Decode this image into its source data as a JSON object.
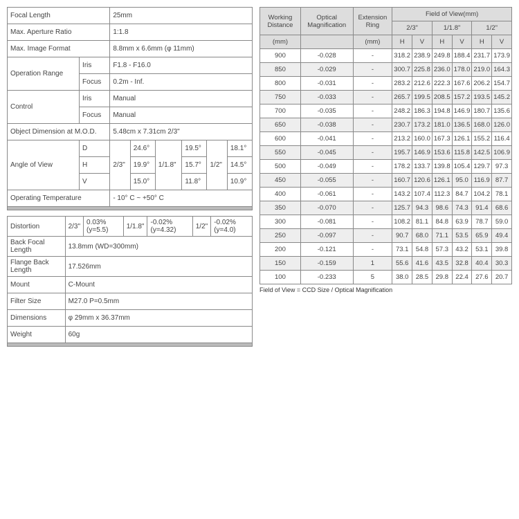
{
  "spec": {
    "focal_length": {
      "label": "Focal Length",
      "value": "25mm"
    },
    "max_aperture": {
      "label": "Max. Aperture Ratio",
      "value": "1:1.8"
    },
    "max_image_format": {
      "label": "Max. Image Format",
      "value": "8.8mm x 6.6mm (φ 11mm)"
    },
    "op_range": {
      "label": "Operation Range",
      "iris_l": "Iris",
      "iris_v": "F1.8 - F16.0",
      "focus_l": "Focus",
      "focus_v": "0.2m - Inf."
    },
    "control": {
      "label": "Control",
      "iris_l": "Iris",
      "iris_v": "Manual",
      "focus_l": "Focus",
      "focus_v": "Manual"
    },
    "obj_dim": {
      "label": "Object Dimension at M.O.D.",
      "value": "5.48cm x 7.31cm 2/3\""
    },
    "aov": {
      "label": "Angle of View",
      "d": "D",
      "h": "H",
      "v": "V",
      "s1": "2/3\"",
      "s2": "1/1.8\"",
      "s3": "1/2\"",
      "d1": "24.6°",
      "d2": "19.5°",
      "d3": "18.1°",
      "h1": "19.9°",
      "h2": "15.7°",
      "h3": "14.5°",
      "v1": "15.0°",
      "v2": "11.8°",
      "v3": "10.9°"
    },
    "op_temp": {
      "label": "Operating Temperature",
      "value": "- 10° C ~ +50° C"
    }
  },
  "spec2": {
    "distortion": {
      "label": "Distortion",
      "s1": "2/3\"",
      "v1": "0.03%(y=5.5)",
      "s2": "1/1.8\"",
      "v2": "-0.02%(y=4.32)",
      "s3": "1/2\"",
      "v3": "-0.02%(y=4.0)"
    },
    "back_focal": {
      "label": "Back Focal Length",
      "value": "13.8mm (WD=300mm)"
    },
    "flange_back": {
      "label": "Flange Back Length",
      "value": "17.526mm"
    },
    "mount": {
      "label": "Mount",
      "value": "C-Mount"
    },
    "filter": {
      "label": "Filter Size",
      "value": "M27.0 P=0.5mm"
    },
    "dimensions": {
      "label": "Dimensions",
      "value": "φ 29mm x 36.37mm"
    },
    "weight": {
      "label": "Weight",
      "value": "60g"
    }
  },
  "fov": {
    "headers": {
      "wd": "Working Distance",
      "mag": "Optical Magnification",
      "ext": "Extension Ring",
      "fov": "Field of View(mm)",
      "s1": "2/3\"",
      "s2": "1/1.8\"",
      "s3": "1/2\"",
      "mm": "(mm)",
      "mm2": "(mm)",
      "H": "H",
      "V": "V"
    },
    "rows": [
      {
        "wd": "900",
        "mag": "-0.028",
        "ext": "-",
        "h1": "318.2",
        "v1": "238.9",
        "h2": "249.8",
        "v2": "188.4",
        "h3": "231.7",
        "v3": "173.9"
      },
      {
        "wd": "850",
        "mag": "-0.029",
        "ext": "-",
        "h1": "300.7",
        "v1": "225.8",
        "h2": "236.0",
        "v2": "178.0",
        "h3": "219.0",
        "v3": "164.3"
      },
      {
        "wd": "800",
        "mag": "-0.031",
        "ext": "-",
        "h1": "283.2",
        "v1": "212.6",
        "h2": "222.3",
        "v2": "167.6",
        "h3": "206.2",
        "v3": "154.7"
      },
      {
        "wd": "750",
        "mag": "-0.033",
        "ext": "-",
        "h1": "265.7",
        "v1": "199.5",
        "h2": "208.5",
        "v2": "157.2",
        "h3": "193.5",
        "v3": "145.2"
      },
      {
        "wd": "700",
        "mag": "-0.035",
        "ext": "-",
        "h1": "248.2",
        "v1": "186.3",
        "h2": "194.8",
        "v2": "146.9",
        "h3": "180.7",
        "v3": "135.6"
      },
      {
        "wd": "650",
        "mag": "-0.038",
        "ext": "-",
        "h1": "230.7",
        "v1": "173.2",
        "h2": "181.0",
        "v2": "136.5",
        "h3": "168.0",
        "v3": "126.0"
      },
      {
        "wd": "600",
        "mag": "-0.041",
        "ext": "-",
        "h1": "213.2",
        "v1": "160.0",
        "h2": "167.3",
        "v2": "126.1",
        "h3": "155.2",
        "v3": "116.4"
      },
      {
        "wd": "550",
        "mag": "-0.045",
        "ext": "-",
        "h1": "195.7",
        "v1": "146.9",
        "h2": "153.6",
        "v2": "115.8",
        "h3": "142.5",
        "v3": "106.9"
      },
      {
        "wd": "500",
        "mag": "-0.049",
        "ext": "-",
        "h1": "178.2",
        "v1": "133.7",
        "h2": "139.8",
        "v2": "105.4",
        "h3": "129.7",
        "v3": "97.3"
      },
      {
        "wd": "450",
        "mag": "-0.055",
        "ext": "-",
        "h1": "160.7",
        "v1": "120.6",
        "h2": "126.1",
        "v2": "95.0",
        "h3": "116.9",
        "v3": "87.7"
      },
      {
        "wd": "400",
        "mag": "-0.061",
        "ext": "-",
        "h1": "143.2",
        "v1": "107.4",
        "h2": "112.3",
        "v2": "84.7",
        "h3": "104.2",
        "v3": "78.1"
      },
      {
        "wd": "350",
        "mag": "-0.070",
        "ext": "-",
        "h1": "125.7",
        "v1": "94.3",
        "h2": "98.6",
        "v2": "74.3",
        "h3": "91.4",
        "v3": "68.6"
      },
      {
        "wd": "300",
        "mag": "-0.081",
        "ext": "-",
        "h1": "108.2",
        "v1": "81.1",
        "h2": "84.8",
        "v2": "63.9",
        "h3": "78.7",
        "v3": "59.0"
      },
      {
        "wd": "250",
        "mag": "-0.097",
        "ext": "-",
        "h1": "90.7",
        "v1": "68.0",
        "h2": "71.1",
        "v2": "53.5",
        "h3": "65.9",
        "v3": "49.4"
      },
      {
        "wd": "200",
        "mag": "-0.121",
        "ext": "-",
        "h1": "73.1",
        "v1": "54.8",
        "h2": "57.3",
        "v2": "43.2",
        "h3": "53.1",
        "v3": "39.8"
      },
      {
        "wd": "150",
        "mag": "-0.159",
        "ext": "1",
        "h1": "55.6",
        "v1": "41.6",
        "h2": "43.5",
        "v2": "32.8",
        "h3": "40.4",
        "v3": "30.3"
      },
      {
        "wd": "100",
        "mag": "-0.233",
        "ext": "5",
        "h1": "38.0",
        "v1": "28.5",
        "h2": "29.8",
        "v2": "22.4",
        "h3": "27.6",
        "v3": "20.7"
      }
    ],
    "footnote": "Field of View = CCD Size / Optical Magnification"
  }
}
